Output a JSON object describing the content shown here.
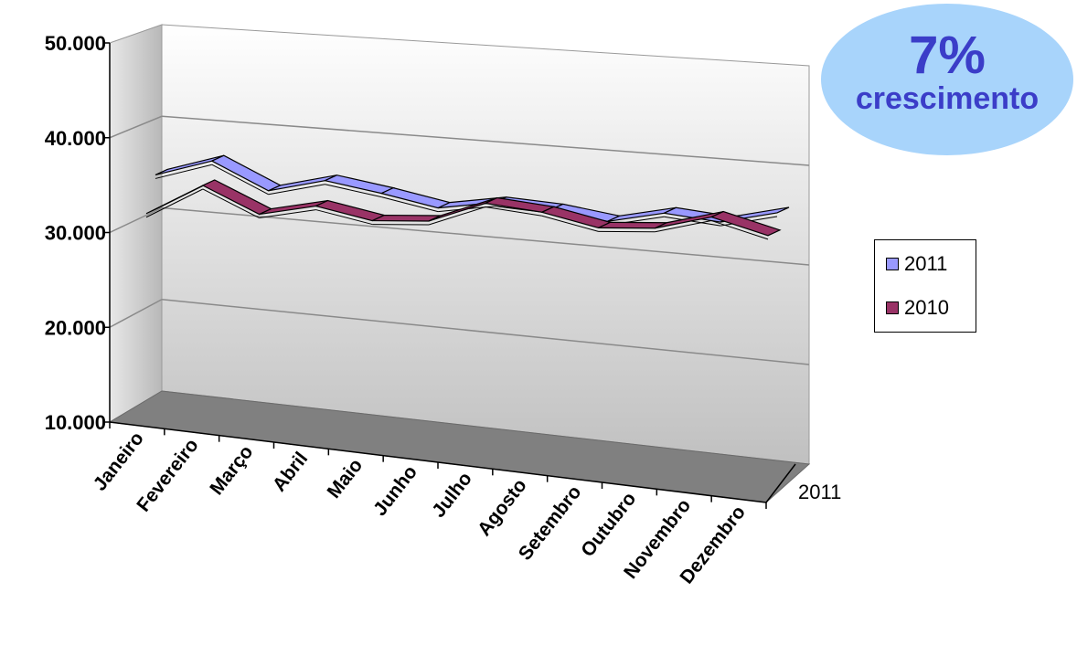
{
  "badge": {
    "percent": "7%",
    "text": "crescimento"
  },
  "legend": [
    {
      "name": "2011",
      "color": "#9999ff"
    },
    {
      "name": "2010",
      "color": "#993366"
    }
  ],
  "depth_label": "2011",
  "chart_data": {
    "type": "line",
    "style": "3d",
    "categories": [
      "Janeiro",
      "Fevereiro",
      "Março",
      "Abril",
      "Maio",
      "Junho",
      "Julho",
      "Agosto",
      "Setembro",
      "Outubro",
      "Novembro",
      "Dezembro"
    ],
    "series": [
      {
        "name": "2011",
        "color": "#9999ff",
        "values": [
          35500,
          37200,
          34300,
          35600,
          34500,
          33200,
          34000,
          33500,
          32500,
          33600,
          32900,
          34100
        ]
      },
      {
        "name": "2010",
        "color": "#993366",
        "values": [
          32000,
          35200,
          32400,
          33500,
          32200,
          32400,
          34500,
          33800,
          32400,
          32600,
          34000,
          32300
        ]
      }
    ],
    "y_ticks": [
      "10.000",
      "20.000",
      "30.000",
      "40.000",
      "50.000"
    ],
    "ylim": [
      10000,
      50000
    ],
    "grid": true,
    "legend_position": "right"
  }
}
